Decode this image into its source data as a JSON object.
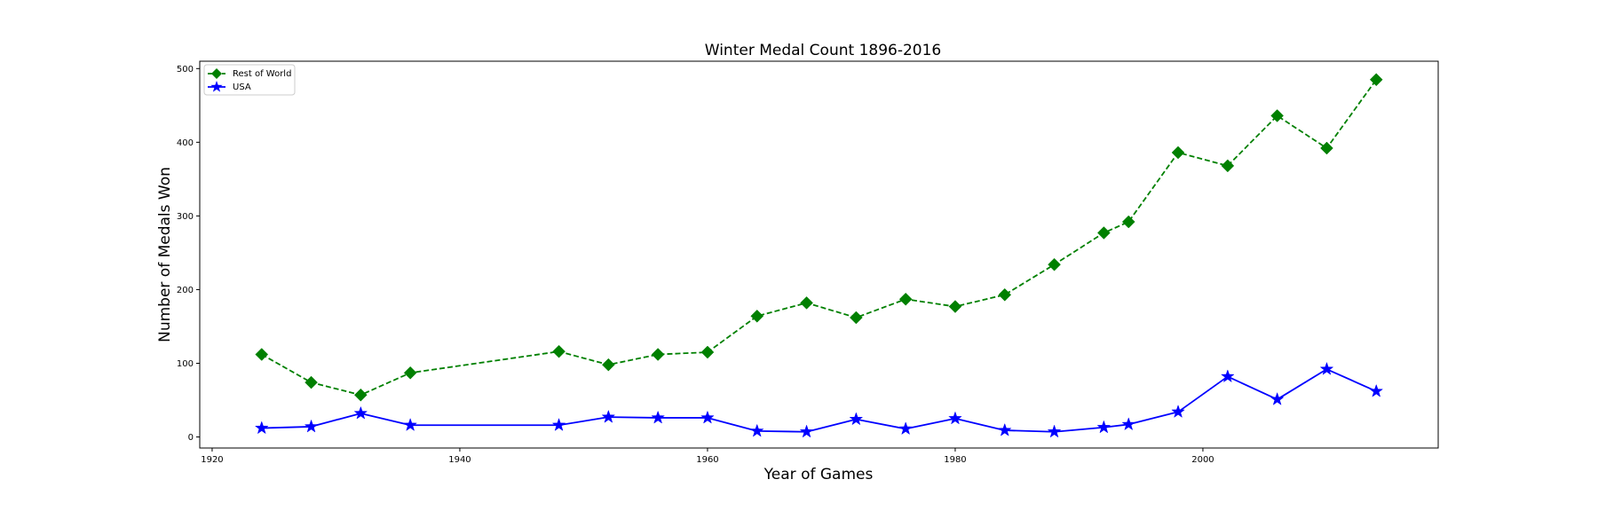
{
  "chart_data": {
    "type": "line",
    "title": "Winter Medal Count 1896-2016",
    "xlabel": "Year of Games",
    "ylabel": "Number of Medals Won",
    "xlim": [
      1919,
      2019
    ],
    "ylim": [
      -15,
      510
    ],
    "xticks": [
      1920,
      1940,
      1960,
      1980,
      2000
    ],
    "yticks": [
      0,
      100,
      200,
      300,
      400,
      500
    ],
    "grid": false,
    "legend_position": "top-left",
    "series": [
      {
        "name": "Rest of World",
        "color": "#008000",
        "linestyle": "dashed",
        "marker": "diamond",
        "x": [
          1924,
          1928,
          1932,
          1936,
          1948,
          1952,
          1956,
          1960,
          1964,
          1968,
          1972,
          1976,
          1980,
          1984,
          1988,
          1992,
          1994,
          1998,
          2002,
          2006,
          2010,
          2014
        ],
        "values": [
          112,
          74,
          57,
          87,
          116,
          98,
          112,
          115,
          164,
          182,
          162,
          187,
          177,
          193,
          234,
          277,
          292,
          386,
          368,
          436,
          392,
          485
        ]
      },
      {
        "name": "USA",
        "color": "#0000ff",
        "linestyle": "solid",
        "marker": "star",
        "x": [
          1924,
          1928,
          1932,
          1936,
          1948,
          1952,
          1956,
          1960,
          1964,
          1968,
          1972,
          1976,
          1980,
          1984,
          1988,
          1992,
          1994,
          1998,
          2002,
          2006,
          2010,
          2014
        ],
        "values": [
          12,
          14,
          32,
          16,
          16,
          27,
          26,
          26,
          8,
          7,
          24,
          11,
          25,
          9,
          7,
          13,
          17,
          34,
          82,
          51,
          92,
          62
        ]
      }
    ]
  }
}
